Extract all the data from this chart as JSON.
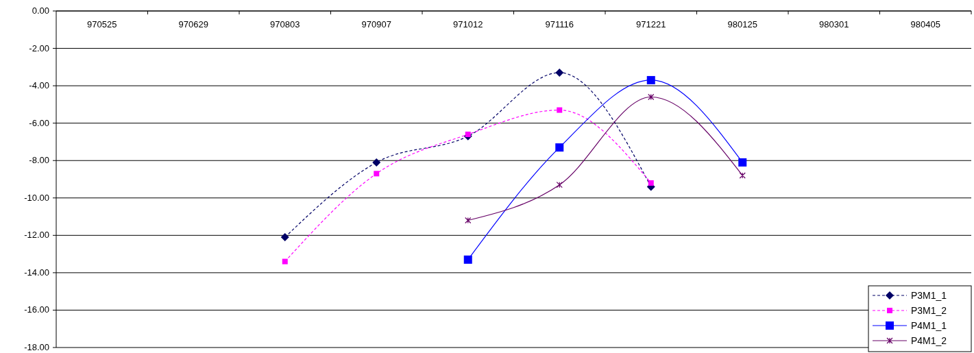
{
  "chart_data": {
    "type": "line",
    "categories": [
      "970525",
      "970629",
      "970803",
      "970907",
      "971012",
      "971116",
      "971221",
      "980125",
      "980301",
      "980405"
    ],
    "ylim": [
      -18,
      0
    ],
    "yticks": [
      {
        "value": 0,
        "label": "0.00"
      },
      {
        "value": -2,
        "label": "-2.00"
      },
      {
        "value": -4,
        "label": "-4.00"
      },
      {
        "value": -6,
        "label": "-6.00"
      },
      {
        "value": -8,
        "label": "-8.00"
      },
      {
        "value": -10,
        "label": "-10.00"
      },
      {
        "value": -12,
        "label": "-12.00"
      },
      {
        "value": -14,
        "label": "-14.00"
      },
      {
        "value": -16,
        "label": "-16.00"
      },
      {
        "value": -18,
        "label": "-18.00"
      }
    ],
    "grid": "y",
    "legend": "bottom right",
    "series": [
      {
        "name": "P3M1_1",
        "color": "#000066",
        "marker": "diamond",
        "line_style": "dashed",
        "values": [
          null,
          null,
          -12.1,
          -8.1,
          -6.7,
          -3.3,
          -9.4,
          null,
          null,
          null
        ]
      },
      {
        "name": "P3M1_2",
        "color": "#ff00ff",
        "marker": "square",
        "line_style": "dashed",
        "values": [
          null,
          null,
          -13.4,
          -8.7,
          -6.6,
          -5.3,
          -9.2,
          null,
          null,
          null
        ]
      },
      {
        "name": "P4M1_1",
        "color": "#0000ff",
        "marker": "square",
        "line_style": "solid",
        "values": [
          null,
          null,
          null,
          null,
          -13.3,
          -7.3,
          -3.7,
          -8.1,
          null,
          null
        ]
      },
      {
        "name": "P4M1_2",
        "color": "#660066",
        "marker": "cross",
        "line_style": "solid",
        "values": [
          null,
          null,
          null,
          null,
          -11.2,
          -9.3,
          -4.6,
          -8.8,
          null,
          null
        ]
      }
    ]
  }
}
